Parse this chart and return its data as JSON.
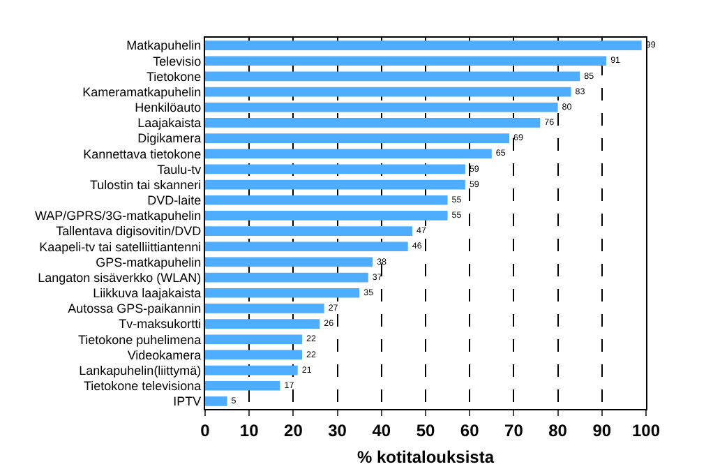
{
  "chart_data": {
    "type": "bar",
    "orientation": "horizontal",
    "xlabel": "% kotitalouksista",
    "categories": [
      "Matkapuhelin",
      "Televisio",
      "Tietokone",
      "Kameramatkapuhelin",
      "Henkilöauto",
      "Laajakaista",
      "Digikamera",
      "Kannettava tietokone",
      "Taulu-tv",
      "Tulostin tai skanneri",
      "DVD-laite",
      "WAP/GPRS/3G-matkapuhelin",
      "Tallentava digisovitin/DVD",
      "Kaapeli-tv tai satelliittiantenni",
      "GPS-matkapuhelin",
      "Langaton sisäverkko (WLAN)",
      "Liikkuva laajakaista",
      "Autossa GPS-paikannin",
      "Tv-maksukortti",
      "Tietokone puhelimena",
      "Videokamera",
      "Lankapuhelin(liittymä)",
      "Tietokone televisiona",
      "IPTV"
    ],
    "values": [
      99,
      91,
      85,
      83,
      80,
      76,
      69,
      65,
      59,
      59,
      55,
      55,
      47,
      46,
      38,
      37,
      35,
      27,
      26,
      22,
      22,
      21,
      17,
      5
    ],
    "color": "#4fadff",
    "xlim": [
      0,
      100
    ],
    "xticks": [
      0,
      10,
      20,
      30,
      40,
      50,
      60,
      70,
      80,
      90,
      100
    ],
    "grid": "x",
    "data_labels": true
  }
}
